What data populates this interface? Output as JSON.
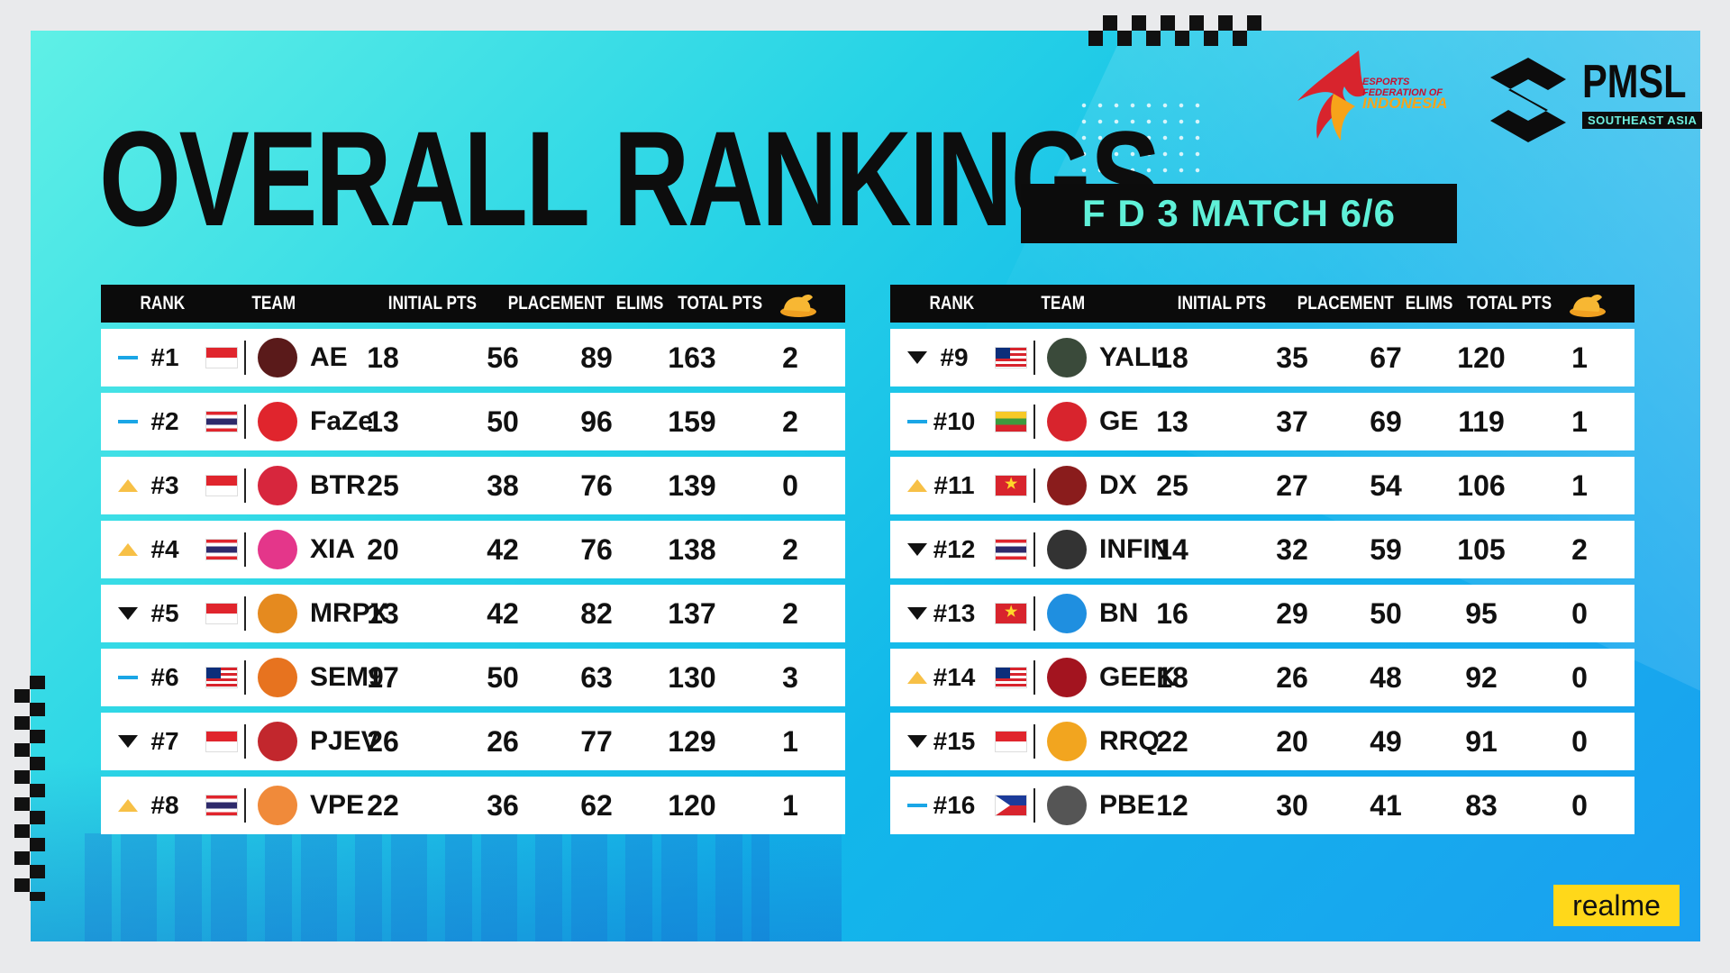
{
  "header": {
    "title": "OVERALL RANKINGS",
    "subtitle": "F D 3 MATCH 6/6",
    "efi_line1": "ESPORTS",
    "efi_line2": "FEDERATION OF",
    "efi_line3": "INDONESIA",
    "pmsl": "PMSL",
    "pmsl_sub": "SOUTHEAST ASIA"
  },
  "columns": {
    "rank": "RANK",
    "team": "TEAM",
    "initial": "INITIAL PTS",
    "placement": "PLACEMENT",
    "elims": "ELIMS",
    "total": "TOTAL PTS",
    "wwcd_icon": "chicken-icon"
  },
  "sponsor": "realme",
  "colors": {
    "same": "#1aa6e6",
    "up": "#f7c046",
    "down": "#111111"
  },
  "left_rows": [
    {
      "trend": "same",
      "rank": "#1",
      "flag": "ID",
      "logo_color": "#5a1a1a",
      "team": "AE",
      "initial": "18",
      "placement": "56",
      "elims": "89",
      "total": "163",
      "wwcd": "2"
    },
    {
      "trend": "same",
      "rank": "#2",
      "flag": "TH",
      "logo_color": "#e0252d",
      "team": "FaZe",
      "initial": "13",
      "placement": "50",
      "elims": "96",
      "total": "159",
      "wwcd": "2"
    },
    {
      "trend": "up",
      "rank": "#3",
      "flag": "ID",
      "logo_color": "#d7263d",
      "team": "BTR",
      "initial": "25",
      "placement": "38",
      "elims": "76",
      "total": "139",
      "wwcd": "0"
    },
    {
      "trend": "up",
      "rank": "#4",
      "flag": "TH",
      "logo_color": "#e4368a",
      "team": "XIA",
      "initial": "20",
      "placement": "42",
      "elims": "76",
      "total": "138",
      "wwcd": "2"
    },
    {
      "trend": "down",
      "rank": "#5",
      "flag": "ID",
      "logo_color": "#e58a1f",
      "team": "MRPX",
      "initial": "13",
      "placement": "42",
      "elims": "82",
      "total": "137",
      "wwcd": "2"
    },
    {
      "trend": "same",
      "rank": "#6",
      "flag": "MY",
      "logo_color": "#e7731f",
      "team": "SEM9",
      "initial": "17",
      "placement": "50",
      "elims": "63",
      "total": "130",
      "wwcd": "3"
    },
    {
      "trend": "down",
      "rank": "#7",
      "flag": "ID",
      "logo_color": "#c2272d",
      "team": "PJEV",
      "initial": "26",
      "placement": "26",
      "elims": "77",
      "total": "129",
      "wwcd": "1"
    },
    {
      "trend": "up",
      "rank": "#8",
      "flag": "TH",
      "logo_color": "#f08a3a",
      "team": "VPE",
      "initial": "22",
      "placement": "36",
      "elims": "62",
      "total": "120",
      "wwcd": "1"
    }
  ],
  "right_rows": [
    {
      "trend": "down",
      "rank": "#9",
      "flag": "MY",
      "logo_color": "#3a4a3a",
      "team": "YALL",
      "initial": "18",
      "placement": "35",
      "elims": "67",
      "total": "120",
      "wwcd": "1"
    },
    {
      "trend": "same",
      "rank": "#10",
      "flag": "MM",
      "logo_color": "#d8242d",
      "team": "GE",
      "initial": "13",
      "placement": "37",
      "elims": "69",
      "total": "119",
      "wwcd": "1"
    },
    {
      "trend": "up",
      "rank": "#11",
      "flag": "VN",
      "logo_color": "#8a1c1c",
      "team": "DX",
      "initial": "25",
      "placement": "27",
      "elims": "54",
      "total": "106",
      "wwcd": "1"
    },
    {
      "trend": "down",
      "rank": "#12",
      "flag": "TH",
      "logo_color": "#333333",
      "team": "INFIN",
      "initial": "14",
      "placement": "32",
      "elims": "59",
      "total": "105",
      "wwcd": "2"
    },
    {
      "trend": "down",
      "rank": "#13",
      "flag": "VN",
      "logo_color": "#1f8fe0",
      "team": "BN",
      "initial": "16",
      "placement": "29",
      "elims": "50",
      "total": "95",
      "wwcd": "0"
    },
    {
      "trend": "up",
      "rank": "#14",
      "flag": "MY",
      "logo_color": "#a3141f",
      "team": "GEEK",
      "initial": "18",
      "placement": "26",
      "elims": "48",
      "total": "92",
      "wwcd": "0"
    },
    {
      "trend": "down",
      "rank": "#15",
      "flag": "ID",
      "logo_color": "#f2a51f",
      "team": "RRQ",
      "initial": "22",
      "placement": "20",
      "elims": "49",
      "total": "91",
      "wwcd": "0"
    },
    {
      "trend": "same",
      "rank": "#16",
      "flag": "PH",
      "logo_color": "#555555",
      "team": "PBE",
      "initial": "12",
      "placement": "30",
      "elims": "41",
      "total": "83",
      "wwcd": "0"
    }
  ]
}
